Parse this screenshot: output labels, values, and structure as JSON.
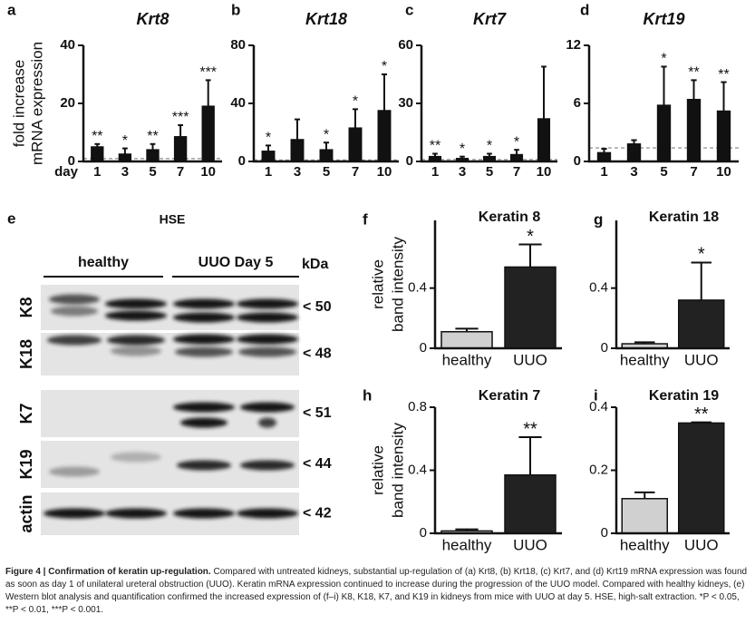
{
  "chart_data": [
    {
      "type": "bar",
      "panel": "a",
      "title": "Krt8",
      "y_label": [
        "fold increase",
        "mRNA expression"
      ],
      "x_label": "day",
      "categories": [
        "1",
        "3",
        "5",
        "7",
        "10"
      ],
      "values": [
        5,
        2.5,
        4,
        8.5,
        19
      ],
      "errors": [
        1,
        2,
        2,
        4,
        9
      ],
      "significance": [
        "**",
        "*",
        "**",
        "***",
        "***"
      ],
      "color": "#111111",
      "reference_line": 1,
      "ylim": [
        0,
        40
      ],
      "yticks": [
        0,
        20,
        40
      ]
    },
    {
      "type": "bar",
      "panel": "b",
      "title": "Krt18",
      "categories": [
        "1",
        "3",
        "5",
        "7",
        "10"
      ],
      "values": [
        7,
        15,
        8,
        23,
        35
      ],
      "errors": [
        4,
        14,
        5,
        13,
        25
      ],
      "significance": [
        "*",
        null,
        "*",
        "*",
        "*"
      ],
      "color": "#111111",
      "reference_line": 1,
      "ylim": [
        0,
        80
      ],
      "yticks": [
        0,
        40,
        80
      ]
    },
    {
      "type": "bar",
      "panel": "c",
      "title": "Krt7",
      "categories": [
        "1",
        "3",
        "5",
        "7",
        "10"
      ],
      "values": [
        2.5,
        1.5,
        2.5,
        3.5,
        22
      ],
      "errors": [
        1.5,
        1,
        1.5,
        2.5,
        27
      ],
      "significance": [
        "**",
        "*",
        "*",
        "*",
        null
      ],
      "color": "#111111",
      "reference_line": 1,
      "ylim": [
        0,
        60
      ],
      "yticks": [
        0,
        30,
        60
      ]
    },
    {
      "type": "bar",
      "panel": "d",
      "title": "Krt19",
      "categories": [
        "1",
        "3",
        "5",
        "7",
        "10"
      ],
      "values": [
        0.9,
        1.8,
        5.8,
        6.4,
        5.2
      ],
      "errors": [
        0.4,
        0.4,
        4,
        2,
        3
      ],
      "significance": [
        null,
        null,
        "*",
        "**",
        "**"
      ],
      "color": "#111111",
      "reference_line": 1.4,
      "ylim": [
        0,
        12
      ],
      "yticks": [
        0,
        6,
        12
      ]
    },
    {
      "type": "bar",
      "panel": "f",
      "title": "Keratin 8",
      "y_label": [
        "relative",
        "band intensity"
      ],
      "categories": [
        "healthy",
        "UUO"
      ],
      "values": [
        0.11,
        0.54
      ],
      "errors": [
        0.02,
        0.15
      ],
      "significance": [
        null,
        "*"
      ],
      "colors": [
        "#d0d0d0",
        "#222222"
      ],
      "ylim": [
        0,
        0.85
      ],
      "yticks": [
        0,
        0.4
      ]
    },
    {
      "type": "bar",
      "panel": "g",
      "title": "Keratin 18",
      "categories": [
        "healthy",
        "UUO"
      ],
      "values": [
        0.03,
        0.32
      ],
      "errors": [
        0.01,
        0.25
      ],
      "significance": [
        null,
        "*"
      ],
      "colors": [
        "#d0d0d0",
        "#222222"
      ],
      "ylim": [
        0,
        0.85
      ],
      "yticks": [
        0,
        0.4
      ]
    },
    {
      "type": "bar",
      "panel": "h",
      "title": "Keratin 7",
      "y_label": [
        "relative",
        "band intensity"
      ],
      "categories": [
        "healthy",
        "UUO"
      ],
      "values": [
        0.015,
        0.37
      ],
      "errors": [
        0.01,
        0.24
      ],
      "significance": [
        null,
        "**"
      ],
      "colors": [
        "#d0d0d0",
        "#222222"
      ],
      "ylim": [
        0,
        0.8
      ],
      "yticks": [
        0,
        0.4,
        0.8
      ]
    },
    {
      "type": "bar",
      "panel": "i",
      "title": "Keratin 19",
      "categories": [
        "healthy",
        "UUO"
      ],
      "values": [
        0.11,
        0.35
      ],
      "errors": [
        0.02,
        0.002
      ],
      "significance": [
        null,
        "**"
      ],
      "colors": [
        "#d0d0d0",
        "#222222"
      ],
      "ylim": [
        0,
        0.4
      ],
      "yticks": [
        0,
        0.2,
        0.4
      ]
    }
  ],
  "blot": {
    "panel": "e",
    "title": "HSE",
    "groups": [
      "healthy",
      "UUO Day 5"
    ],
    "unit": "kDa",
    "rows": [
      {
        "label": "K8",
        "marker": "< 50"
      },
      {
        "label": "K18",
        "marker": "< 48"
      },
      {
        "label": "K7",
        "marker": "< 51"
      },
      {
        "label": "K19",
        "marker": "< 44"
      },
      {
        "label": "actin",
        "marker": "< 42"
      }
    ]
  },
  "caption": {
    "label": "Figure 4 | Confirmation of keratin up-regulation.",
    "text": "Compared with untreated kidneys, substantial up-regulation of (a) Krt8, (b) Krt18, (c) Krt7, and (d) Krt19 mRNA expression was found as soon as day 1 of unilateral ureteral obstruction (UUO). Keratin mRNA expression continued to increase during the progression of the UUO model. Compared with healthy kidneys, (e) Western blot analysis and quantification confirmed the increased expression of (f–i) K8, K18, K7, and K19 in kidneys from mice with UUO at day 5. HSE, high-salt extraction. *P < 0.05, **P < 0.01, ***P < 0.001."
  }
}
